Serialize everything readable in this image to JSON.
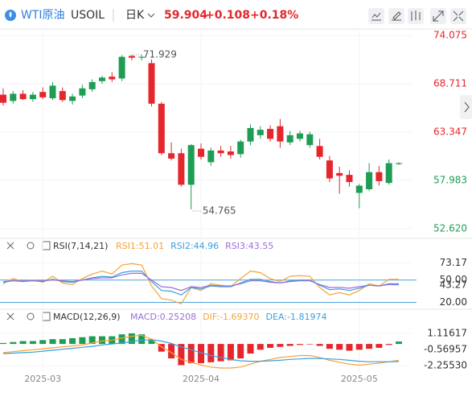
{
  "header": {
    "name": "WTI原油",
    "symbol": "USOIL",
    "period": "日K",
    "price": "59.904",
    "change": "+0.108",
    "change_pct": "+0.18%"
  },
  "chart_data": [
    {
      "type": "candlestick",
      "categories": [
        null,
        null,
        null,
        null,
        "2025-03",
        null,
        null,
        null,
        null,
        null,
        null,
        null,
        null,
        null,
        null,
        null,
        null,
        null,
        null,
        null,
        "2025-04",
        null,
        null,
        null,
        null,
        null,
        null,
        null,
        null,
        null,
        null,
        null,
        null,
        null,
        null,
        null,
        "2025-05",
        null,
        null,
        null,
        null
      ],
      "open": [
        67.5,
        66.8,
        67.6,
        67.0,
        67.8,
        67.1,
        67.9,
        66.8,
        67.4,
        68.1,
        69.0,
        69.5,
        69.3,
        71.8,
        71.6,
        71.0,
        66.5,
        61.0,
        61.0,
        57.5,
        61.5,
        60.0,
        61.3,
        61.2,
        60.9,
        62.3,
        63.0,
        63.7,
        64.0,
        62.2,
        62.6,
        61.9,
        61.8,
        60.2,
        58.8,
        58.6,
        56.6,
        57.0,
        58.9,
        57.7,
        59.8
      ],
      "high": [
        68.2,
        67.9,
        68.0,
        67.8,
        68.3,
        68.9,
        68.3,
        67.6,
        68.6,
        69.2,
        69.6,
        70.0,
        71.9,
        71.929,
        71.9,
        71.4,
        66.7,
        62.2,
        61.5,
        62.0,
        62.1,
        61.6,
        61.8,
        61.8,
        62.5,
        64.2,
        64.0,
        64.1,
        64.8,
        63.5,
        63.5,
        63.4,
        62.6,
        60.7,
        59.5,
        59.1,
        57.6,
        59.9,
        59.6,
        60.3,
        60.0
      ],
      "low": [
        66.3,
        66.5,
        66.9,
        66.7,
        67.0,
        66.9,
        66.7,
        66.4,
        67.1,
        67.8,
        68.7,
        68.9,
        69.0,
        71.3,
        71.3,
        66.2,
        60.8,
        60.2,
        57.3,
        54.765,
        60.3,
        59.6,
        60.6,
        60.4,
        60.5,
        61.9,
        62.6,
        62.3,
        61.6,
        61.9,
        62.3,
        61.6,
        60.3,
        57.8,
        56.5,
        57.3,
        54.9,
        56.8,
        57.4,
        57.5,
        59.7
      ],
      "close": [
        66.6,
        67.6,
        67.0,
        67.5,
        67.2,
        68.5,
        66.9,
        67.3,
        68.2,
        68.9,
        69.4,
        69.2,
        71.7,
        71.6,
        71.7,
        66.5,
        61.0,
        60.4,
        57.5,
        61.9,
        60.6,
        61.3,
        61.0,
        60.8,
        62.3,
        63.8,
        63.6,
        62.6,
        62.3,
        63.0,
        63.2,
        63.1,
        60.6,
        58.2,
        58.5,
        57.8,
        57.4,
        58.9,
        57.9,
        59.9,
        59.904
      ],
      "up_color": "#1f9d55",
      "down_color": "#e5262c",
      "annotations": {
        "high": "71.929",
        "low": "54.765"
      },
      "ylim": [
        52.62,
        74.075
      ],
      "yticks": [
        74.075,
        68.711,
        63.347,
        57.983,
        {
          "value": 52.62,
          "label": "52.620"
        }
      ],
      "grid": true
    },
    {
      "type": "line",
      "title": "RSI(7,14,21)",
      "series": [
        {
          "name": "RSI1:51.01",
          "color": "#f7a335",
          "values": [
            45,
            52,
            48,
            50,
            47,
            55,
            46,
            44,
            52,
            58,
            62,
            58,
            70,
            72,
            70,
            42,
            25,
            23,
            18,
            40,
            36,
            45,
            43,
            41,
            52,
            62,
            60,
            52,
            48,
            55,
            56,
            55,
            40,
            30,
            33,
            30,
            36,
            45,
            42,
            51,
            51.01
          ]
        },
        {
          "name": "RSI2:44.96",
          "color": "#3aa0e0",
          "values": [
            47,
            49,
            48,
            49,
            48,
            51,
            48,
            47,
            50,
            53,
            55,
            54,
            60,
            62,
            62,
            48,
            36,
            35,
            30,
            40,
            38,
            42,
            41,
            41,
            46,
            51,
            51,
            48,
            46,
            49,
            50,
            50,
            43,
            37,
            38,
            36,
            39,
            43,
            42,
            45,
            44.96
          ]
        },
        {
          "name": "RSI3:43.55",
          "color": "#9b6fd6",
          "values": [
            48,
            49,
            49,
            49,
            49,
            50,
            49,
            48,
            50,
            52,
            53,
            53,
            57,
            59,
            59,
            50,
            41,
            40,
            36,
            41,
            40,
            43,
            42,
            42,
            45,
            49,
            49,
            47,
            46,
            48,
            49,
            49,
            44,
            40,
            40,
            39,
            41,
            43,
            42,
            44,
            43.55
          ]
        }
      ],
      "levels": [
        50,
        20
      ],
      "level_color": "#4aa3df",
      "ylim": [
        14,
        80
      ],
      "yticks": [
        73.17,
        {
          "value": 50,
          "label": "50.00"
        },
        43.27,
        {
          "value": 20,
          "label": "20.00"
        }
      ]
    },
    {
      "type": "macd",
      "title": "MACD(12,26,9)",
      "series": [
        {
          "name": "MACD:0.25208",
          "color": "#9b6fd6",
          "up_color": "#1f9d55",
          "down_color": "#e5262c",
          "values": [
            0.1,
            0.2,
            0.3,
            0.3,
            0.4,
            0.5,
            0.5,
            0.6,
            0.7,
            0.8,
            0.8,
            0.8,
            1.0,
            1.1,
            1.0,
            0.4,
            -0.8,
            -1.5,
            -2.2,
            -2.0,
            -2.0,
            -1.9,
            -1.8,
            -1.7,
            -1.5,
            -1.0,
            -0.6,
            -0.4,
            -0.3,
            -0.2,
            -0.1,
            -0.05,
            -0.2,
            -0.5,
            -0.6,
            -0.7,
            -0.6,
            -0.5,
            -0.4,
            -0.1,
            0.25208
          ]
        },
        {
          "name": "DIF:-1.69370",
          "color": "#f7a335",
          "values": [
            -0.9,
            -0.8,
            -0.7,
            -0.6,
            -0.5,
            -0.4,
            -0.3,
            -0.2,
            -0.1,
            0.1,
            0.3,
            0.4,
            0.6,
            0.8,
            0.9,
            0.5,
            -0.3,
            -0.9,
            -1.6,
            -1.9,
            -2.2,
            -2.4,
            -2.5,
            -2.5,
            -2.4,
            -2.1,
            -1.8,
            -1.6,
            -1.4,
            -1.3,
            -1.2,
            -1.2,
            -1.4,
            -1.7,
            -1.9,
            -2.1,
            -2.2,
            -2.1,
            -2.0,
            -1.85,
            -1.6937
          ]
        },
        {
          "name": "DEA:-1.81974",
          "color": "#3aa0e0",
          "values": [
            -1.0,
            -0.95,
            -0.9,
            -0.85,
            -0.75,
            -0.65,
            -0.55,
            -0.45,
            -0.35,
            -0.25,
            -0.1,
            0.0,
            0.1,
            0.25,
            0.4,
            0.45,
            0.3,
            0.05,
            -0.3,
            -0.6,
            -0.9,
            -1.2,
            -1.4,
            -1.6,
            -1.75,
            -1.8,
            -1.8,
            -1.75,
            -1.7,
            -1.6,
            -1.55,
            -1.5,
            -1.5,
            -1.55,
            -1.6,
            -1.7,
            -1.8,
            -1.85,
            -1.85,
            -1.85,
            -1.81974
          ]
        }
      ],
      "ylim": [
        -3.0,
        2.6
      ],
      "yticks": [
        1.11617,
        -0.56957,
        {
          "value": -2.2553,
          "label": "-2.25530"
        }
      ]
    }
  ]
}
